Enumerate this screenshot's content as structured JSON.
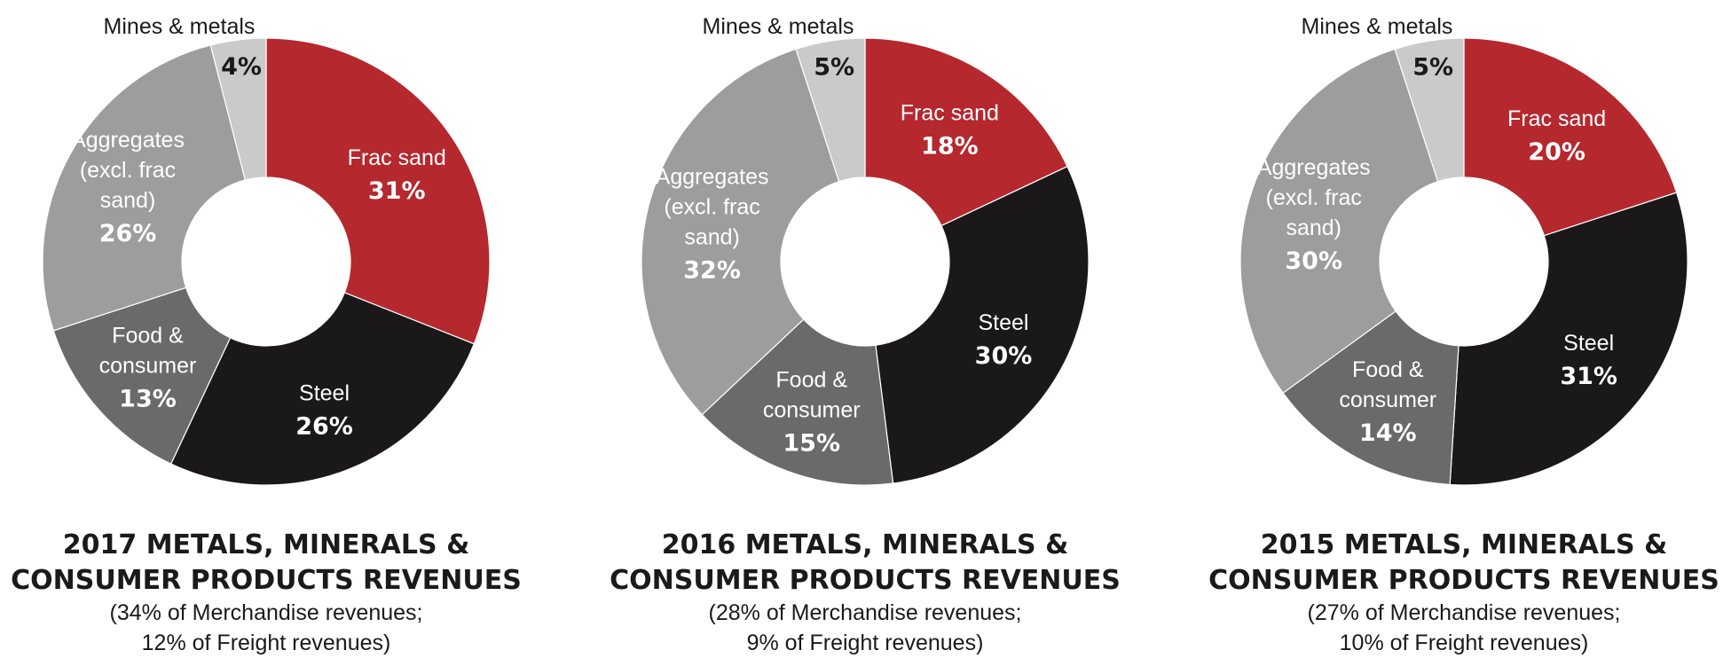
{
  "colors": {
    "frac_sand": "#b5282e",
    "steel": "#1a1819",
    "food": "#6a6a6a",
    "aggregates": "#9d9d9d",
    "mines": "#cacaca"
  },
  "chart_data": [
    {
      "type": "pie",
      "title_line1": "2017 METALS, MINERALS &",
      "title_line2": "CONSUMER PRODUCTS REVENUES",
      "subtitle_line1": "(34% of Merchandise revenues;",
      "subtitle_line2": "12% of Freight revenues)",
      "slices": [
        {
          "key": "frac",
          "label": [
            "Frac sand"
          ],
          "value": 31,
          "pct": "31%"
        },
        {
          "key": "steel",
          "label": [
            "Steel"
          ],
          "value": 26,
          "pct": "26%"
        },
        {
          "key": "food",
          "label": [
            "Food &",
            "consumer"
          ],
          "value": 13,
          "pct": "13%"
        },
        {
          "key": "agg",
          "label": [
            "Aggregates",
            "(excl. frac",
            "sand)"
          ],
          "value": 26,
          "pct": "26%"
        },
        {
          "key": "mines",
          "label": [
            "Mines & metals"
          ],
          "value": 4,
          "pct": "4%"
        }
      ]
    },
    {
      "type": "pie",
      "title_line1": "2016 METALS, MINERALS &",
      "title_line2": "CONSUMER PRODUCTS REVENUES",
      "subtitle_line1": "(28% of Merchandise revenues;",
      "subtitle_line2": "9% of Freight revenues)",
      "slices": [
        {
          "key": "frac",
          "label": [
            "Frac sand"
          ],
          "value": 18,
          "pct": "18%"
        },
        {
          "key": "steel",
          "label": [
            "Steel"
          ],
          "value": 30,
          "pct": "30%"
        },
        {
          "key": "food",
          "label": [
            "Food &",
            "consumer"
          ],
          "value": 15,
          "pct": "15%"
        },
        {
          "key": "agg",
          "label": [
            "Aggregates",
            "(excl. frac",
            "sand)"
          ],
          "value": 32,
          "pct": "32%"
        },
        {
          "key": "mines",
          "label": [
            "Mines & metals"
          ],
          "value": 5,
          "pct": "5%"
        }
      ]
    },
    {
      "type": "pie",
      "title_line1": "2015 METALS, MINERALS &",
      "title_line2": "CONSUMER PRODUCTS REVENUES",
      "subtitle_line1": "(27% of Merchandise revenues;",
      "subtitle_line2": "10% of Freight revenues)",
      "slices": [
        {
          "key": "frac",
          "label": [
            "Frac sand"
          ],
          "value": 20,
          "pct": "20%"
        },
        {
          "key": "steel",
          "label": [
            "Steel"
          ],
          "value": 31,
          "pct": "31%"
        },
        {
          "key": "food",
          "label": [
            "Food &",
            "consumer"
          ],
          "value": 14,
          "pct": "14%"
        },
        {
          "key": "agg",
          "label": [
            "Aggregates",
            "(excl. frac",
            "sand)"
          ],
          "value": 30,
          "pct": "30%"
        },
        {
          "key": "mines",
          "label": [
            "Mines & metals"
          ],
          "value": 5,
          "pct": "5%"
        }
      ]
    }
  ]
}
